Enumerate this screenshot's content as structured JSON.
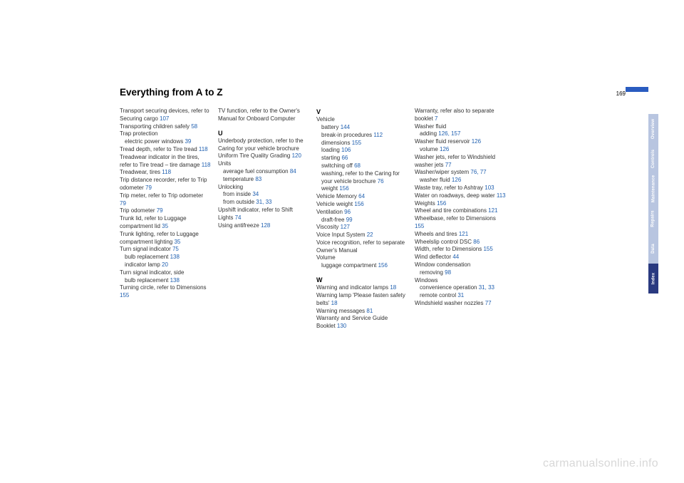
{
  "header": {
    "title": "Everything from A to Z",
    "page_number": "169",
    "marker_color": "#2a5cc0"
  },
  "side_tabs": [
    {
      "label": "Overview",
      "style": "light"
    },
    {
      "label": "Controls",
      "style": "light"
    },
    {
      "label": "Maintenance",
      "style": "light"
    },
    {
      "label": "Repairs",
      "style": "light"
    },
    {
      "label": "Data",
      "style": "light"
    },
    {
      "label": "Index",
      "style": "dark"
    }
  ],
  "watermark": "carmanualsonline.info",
  "columns": [
    [
      {
        "t": "Transport securing devices, refer to Securing cargo",
        "r": "107"
      },
      {
        "t": "Transporting children safely",
        "r": "58"
      },
      {
        "t": "Trap protection"
      },
      {
        "t": "electric power windows",
        "r": "39",
        "sub": true
      },
      {
        "t": "Tread depth, refer to Tire tread",
        "r": "118"
      },
      {
        "t": "Treadwear indicator in the tires, refer to Tire tread – tire damage",
        "r": "118"
      },
      {
        "t": "Treadwear, tires",
        "r": "118"
      },
      {
        "t": "Trip distance recorder, refer to Trip odometer",
        "r": "79"
      },
      {
        "t": "Trip meter, refer to Trip odometer",
        "r": "79"
      },
      {
        "t": "Trip odometer",
        "r": "79"
      },
      {
        "t": "Trunk lid, refer to Luggage compartment lid",
        "r": "35"
      },
      {
        "t": "Trunk lighting, refer to Luggage compartment lighting",
        "r": "35"
      },
      {
        "t": "Turn signal indicator",
        "r": "75"
      },
      {
        "t": "bulb replacement",
        "r": "138",
        "sub": true
      },
      {
        "t": "indicator lamp",
        "r": "20",
        "sub": true
      },
      {
        "t": "Turn signal indicator, side"
      },
      {
        "t": "bulb replacement",
        "r": "138",
        "sub": true
      },
      {
        "t": "Turning circle, refer to Dimensions",
        "r": "155"
      }
    ],
    [
      {
        "t": "TV function, refer to the Owner's Manual for Onboard Computer"
      },
      {
        "letter": "U"
      },
      {
        "t": "Underbody protection, refer to the Caring for your vehicle brochure"
      },
      {
        "t": "Uniform Tire Quality Grading",
        "r": "120"
      },
      {
        "t": "Units"
      },
      {
        "t": "average fuel consumption",
        "r": "84",
        "sub": true
      },
      {
        "t": "temperature",
        "r": "83",
        "sub": true
      },
      {
        "t": "Unlocking"
      },
      {
        "t": "from inside",
        "r": "34",
        "sub": true
      },
      {
        "t": "from outside",
        "r": "31, 33",
        "sub": true
      },
      {
        "t": "Upshift indicator, refer to Shift Lights",
        "r": "74"
      },
      {
        "t": "Using antifreeze",
        "r": "128"
      }
    ],
    [
      {
        "letter": "V",
        "first": true
      },
      {
        "t": "Vehicle"
      },
      {
        "t": "battery",
        "r": "144",
        "sub": true
      },
      {
        "t": "break-in procedures",
        "r": "112",
        "sub": true
      },
      {
        "t": "dimensions",
        "r": "155",
        "sub": true
      },
      {
        "t": "loading",
        "r": "106",
        "sub": true
      },
      {
        "t": "starting",
        "r": "66",
        "sub": true
      },
      {
        "t": "switching off",
        "r": "68",
        "sub": true
      },
      {
        "t": "washing, refer to the Caring for your vehicle brochure",
        "r": "76",
        "sub": true
      },
      {
        "t": "weight",
        "r": "156",
        "sub": true
      },
      {
        "t": "Vehicle Memory",
        "r": "64"
      },
      {
        "t": "Vehicle weight",
        "r": "156"
      },
      {
        "t": "Ventilation",
        "r": "96"
      },
      {
        "t": "draft-free",
        "r": "99",
        "sub": true
      },
      {
        "t": "Viscosity",
        "r": "127"
      },
      {
        "t": "Voice Input System",
        "r": "22"
      },
      {
        "t": "Voice recognition, refer to separate Owner's Manual"
      },
      {
        "t": "Volume"
      },
      {
        "t": "luggage compartment",
        "r": "156",
        "sub": true
      },
      {
        "letter": "W"
      },
      {
        "t": "Warning and indicator lamps",
        "r": "18"
      },
      {
        "t": "Warning lamp 'Please fasten safety belts'",
        "r": "18"
      },
      {
        "t": "Warning messages",
        "r": "81"
      },
      {
        "t": "Warranty and Service Guide Booklet",
        "r": "130"
      }
    ],
    [
      {
        "t": "Warranty, refer also to separate booklet",
        "r": "7"
      },
      {
        "t": "Washer fluid"
      },
      {
        "t": "adding",
        "r": "126, 157",
        "sub": true
      },
      {
        "t": "Washer fluid reservoir",
        "r": "126"
      },
      {
        "t": "volume",
        "r": "126",
        "sub": true
      },
      {
        "t": "Washer jets, refer to Windshield washer jets",
        "r": "77"
      },
      {
        "t": "Washer/wiper system",
        "r": "76, 77"
      },
      {
        "t": "washer fluid",
        "r": "126",
        "sub": true
      },
      {
        "t": "Waste tray, refer to Ashtray",
        "r": "103"
      },
      {
        "t": "Water on roadways, deep water",
        "r": "113"
      },
      {
        "t": "Weights",
        "r": "156"
      },
      {
        "t": "Wheel and tire combinations",
        "r": "121"
      },
      {
        "t": "Wheelbase, refer to Dimensions",
        "r": "155"
      },
      {
        "t": "Wheels and tires",
        "r": "121"
      },
      {
        "t": "Wheelslip control DSC",
        "r": "86"
      },
      {
        "t": "Width, refer to Dimensions",
        "r": "155"
      },
      {
        "t": "Wind deflector",
        "r": "44"
      },
      {
        "t": "Window condensation"
      },
      {
        "t": "removing",
        "r": "98",
        "sub": true
      },
      {
        "t": "Windows"
      },
      {
        "t": "convenience operation",
        "r": "31, 33",
        "sub": true
      },
      {
        "t": "remote control",
        "r": "31",
        "sub": true
      },
      {
        "t": "Windshield washer nozzles",
        "r": "77"
      }
    ]
  ]
}
